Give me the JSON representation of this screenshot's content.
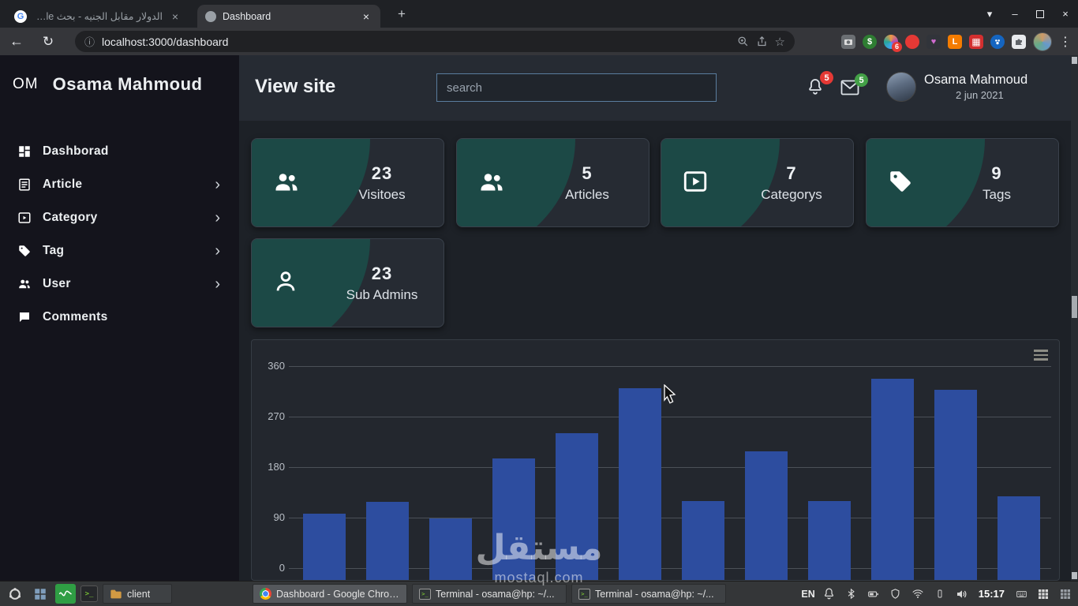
{
  "browser": {
    "tabs": [
      {
        "title": "الدولار مقابل الجنيه - بحث Google",
        "active": false
      },
      {
        "title": "Dashboard",
        "active": true
      }
    ],
    "url": "localhost:3000/dashboard",
    "ext_badge": "6"
  },
  "icons": {
    "google_g": "G",
    "tab_close": "×",
    "new_tab": "+",
    "window_chevron": "▾",
    "window_minimize": "–",
    "window_close": "×",
    "back_arrow": "←",
    "reload": "↻",
    "info": "ⓘ",
    "star": "☆",
    "menu_dots": "⋮",
    "chevron_right": "›",
    "dollar": "$",
    "heart": "♥",
    "letter_l": "L",
    "grid_glyph": "▦",
    "terminal_prompt": ">_"
  },
  "sidebar": {
    "logo": "OM",
    "title": "Osama Mahmoud",
    "items": [
      {
        "label": "Dashborad",
        "chevron": false
      },
      {
        "label": "Article",
        "chevron": true
      },
      {
        "label": "Category",
        "chevron": true
      },
      {
        "label": "Tag",
        "chevron": true
      },
      {
        "label": "User",
        "chevron": true
      },
      {
        "label": "Comments",
        "chevron": false
      }
    ]
  },
  "header": {
    "view_site": "View site",
    "search_placeholder": "search",
    "bell_badge": "5",
    "mail_badge": "5",
    "user_name": "Osama Mahmoud",
    "user_date": "2 jun 2021"
  },
  "cards": [
    {
      "value": "23",
      "label": "Visitoes"
    },
    {
      "value": "5",
      "label": "Articles"
    },
    {
      "value": "7",
      "label": "Categorys"
    },
    {
      "value": "9",
      "label": "Tags"
    },
    {
      "value": "23",
      "label": "Sub Admins"
    }
  ],
  "chart_data": {
    "type": "bar",
    "title": "",
    "xlabel": "",
    "ylabel": "",
    "values": [
      97,
      118,
      88,
      196,
      240,
      320,
      120,
      208,
      120,
      338,
      318,
      128
    ],
    "yticks": [
      0,
      90,
      180,
      270,
      360
    ],
    "ylim": [
      0,
      360
    ],
    "bar_color": "#2d4d9f",
    "grid": true,
    "legend": false
  },
  "watermark": {
    "line1": "مستقل",
    "line2": "mostaql.com"
  },
  "taskbar": {
    "file_button": "client",
    "windows": [
      "Dashboard - Google Chrome",
      "Terminal - osama@hp: ~/...",
      "Terminal - osama@hp: ~/..."
    ],
    "lang": "EN",
    "time": "15:17"
  }
}
